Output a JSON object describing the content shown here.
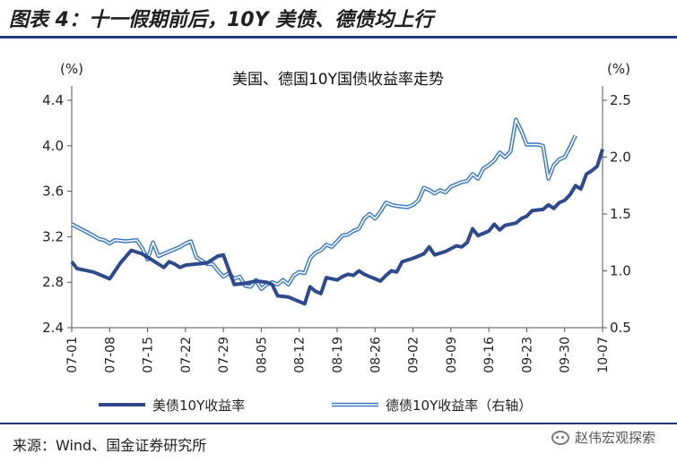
{
  "figure_title": "图表 4：十一假期前后，10Y 美债、德债均上行",
  "source": "来源：Wind、国金证券研究所",
  "watermark": "赵伟宏观探索",
  "colors": {
    "us": "#2e4a8c",
    "de_outer": "#3a78c0",
    "de_inner": "#ffffff",
    "rule": "#1f3a7a"
  },
  "chart_data": {
    "type": "line",
    "title": "美国、德国10Y国债收益率走势",
    "ylabel_left": "(%)",
    "ylabel_right": "(%)",
    "ylim_left": [
      2.4,
      4.4
    ],
    "ylim_right": [
      0.5,
      2.5
    ],
    "yticks_left": [
      "2.4",
      "2.8",
      "3.2",
      "3.6",
      "4.0",
      "4.4"
    ],
    "yticks_right": [
      "0.5",
      "1.0",
      "1.5",
      "2.0",
      "2.5"
    ],
    "x_ticks": [
      "07-01",
      "07-08",
      "07-15",
      "07-22",
      "07-29",
      "08-05",
      "08-12",
      "08-19",
      "08-26",
      "09-02",
      "09-09",
      "09-16",
      "09-23",
      "09-30",
      "10-07"
    ],
    "x_range": [
      0,
      98
    ],
    "legend_position": "bottom",
    "series": [
      {
        "name": "美债10Y收益率",
        "axis": "left",
        "points": [
          [
            0,
            2.98
          ],
          [
            1,
            2.92
          ],
          [
            4,
            2.89
          ],
          [
            7,
            2.83
          ],
          [
            9,
            2.97
          ],
          [
            11,
            3.08
          ],
          [
            13,
            3.05
          ],
          [
            15,
            2.99
          ],
          [
            17,
            2.93
          ],
          [
            18,
            2.98
          ],
          [
            19,
            2.96
          ],
          [
            20,
            2.93
          ],
          [
            21,
            2.95
          ],
          [
            23,
            2.96
          ],
          [
            25,
            2.97
          ],
          [
            27,
            3.03
          ],
          [
            28,
            3.04
          ],
          [
            30,
            2.78
          ],
          [
            32,
            2.79
          ],
          [
            34,
            2.81
          ],
          [
            36,
            2.8
          ],
          [
            37,
            2.78
          ],
          [
            38,
            2.68
          ],
          [
            40,
            2.67
          ],
          [
            42,
            2.63
          ],
          [
            43,
            2.61
          ],
          [
            44,
            2.76
          ],
          [
            45,
            2.72
          ],
          [
            46,
            2.7
          ],
          [
            47,
            2.84
          ],
          [
            49,
            2.82
          ],
          [
            50,
            2.85
          ],
          [
            51,
            2.87
          ],
          [
            52,
            2.86
          ],
          [
            53,
            2.9
          ],
          [
            54,
            2.87
          ],
          [
            55,
            2.85
          ],
          [
            56,
            2.83
          ],
          [
            57,
            2.81
          ],
          [
            58,
            2.86
          ],
          [
            59,
            2.9
          ],
          [
            60,
            2.89
          ],
          [
            61,
            2.98
          ],
          [
            63,
            3.01
          ],
          [
            65,
            3.05
          ],
          [
            66,
            3.11
          ],
          [
            67,
            3.04
          ],
          [
            69,
            3.07
          ],
          [
            71,
            3.12
          ],
          [
            72,
            3.11
          ],
          [
            73,
            3.15
          ],
          [
            74,
            3.27
          ],
          [
            75,
            3.21
          ],
          [
            77,
            3.25
          ],
          [
            78,
            3.31
          ],
          [
            79,
            3.26
          ],
          [
            80,
            3.3
          ],
          [
            82,
            3.32
          ],
          [
            83,
            3.36
          ],
          [
            84,
            3.38
          ],
          [
            85,
            3.43
          ],
          [
            87,
            3.44
          ],
          [
            88,
            3.48
          ],
          [
            89,
            3.45
          ],
          [
            90,
            3.5
          ],
          [
            91,
            3.52
          ],
          [
            92,
            3.57
          ],
          [
            93,
            3.65
          ],
          [
            94,
            3.62
          ],
          [
            95,
            3.75
          ],
          [
            96,
            3.78
          ],
          [
            97,
            3.82
          ],
          [
            98,
            3.97
          ]
        ]
      },
      {
        "name": "德债10Y收益率（右轴）",
        "axis": "right",
        "points": [
          [
            0,
            1.41
          ],
          [
            2,
            1.36
          ],
          [
            4,
            1.31
          ],
          [
            5,
            1.28
          ],
          [
            6,
            1.27
          ],
          [
            7,
            1.24
          ],
          [
            8,
            1.27
          ],
          [
            10,
            1.26
          ],
          [
            12,
            1.27
          ],
          [
            13,
            1.2
          ],
          [
            14,
            1.1
          ],
          [
            15,
            1.25
          ],
          [
            16,
            1.13
          ],
          [
            18,
            1.17
          ],
          [
            20,
            1.21
          ],
          [
            21,
            1.24
          ],
          [
            22,
            1.26
          ],
          [
            23,
            1.12
          ],
          [
            25,
            1.06
          ],
          [
            26,
            1.06
          ],
          [
            27,
            1.0
          ],
          [
            28,
            0.95
          ],
          [
            29,
            0.98
          ],
          [
            30,
            0.93
          ],
          [
            31,
            0.95
          ],
          [
            32,
            0.87
          ],
          [
            33,
            0.86
          ],
          [
            34,
            0.92
          ],
          [
            35,
            0.84
          ],
          [
            36,
            0.88
          ],
          [
            37,
            0.9
          ],
          [
            38,
            0.88
          ],
          [
            39,
            0.92
          ],
          [
            40,
            0.88
          ],
          [
            41,
            0.96
          ],
          [
            42,
            0.99
          ],
          [
            43,
            0.98
          ],
          [
            44,
            1.11
          ],
          [
            45,
            1.16
          ],
          [
            46,
            1.18
          ],
          [
            47,
            1.23
          ],
          [
            48,
            1.21
          ],
          [
            49,
            1.26
          ],
          [
            50,
            1.31
          ],
          [
            51,
            1.32
          ],
          [
            52,
            1.35
          ],
          [
            53,
            1.37
          ],
          [
            54,
            1.46
          ],
          [
            55,
            1.5
          ],
          [
            56,
            1.46
          ],
          [
            57,
            1.52
          ],
          [
            58,
            1.6
          ],
          [
            59,
            1.58
          ],
          [
            60,
            1.57
          ],
          [
            62,
            1.56
          ],
          [
            63,
            1.58
          ],
          [
            64,
            1.62
          ],
          [
            65,
            1.73
          ],
          [
            66,
            1.71
          ],
          [
            67,
            1.68
          ],
          [
            68,
            1.71
          ],
          [
            69,
            1.69
          ],
          [
            70,
            1.74
          ],
          [
            71,
            1.76
          ],
          [
            72,
            1.78
          ],
          [
            73,
            1.79
          ],
          [
            74,
            1.85
          ],
          [
            75,
            1.81
          ],
          [
            76,
            1.9
          ],
          [
            77,
            1.93
          ],
          [
            78,
            1.97
          ],
          [
            79,
            2.04
          ],
          [
            80,
            2.0
          ],
          [
            81,
            2.05
          ],
          [
            82,
            2.33
          ],
          [
            83,
            2.23
          ],
          [
            84,
            2.11
          ],
          [
            86,
            2.11
          ],
          [
            87,
            2.1
          ],
          [
            88,
            1.81
          ],
          [
            89,
            1.93
          ],
          [
            90,
            1.98
          ],
          [
            91,
            2.0
          ],
          [
            92,
            2.09
          ],
          [
            93,
            2.19
          ]
        ]
      }
    ]
  }
}
